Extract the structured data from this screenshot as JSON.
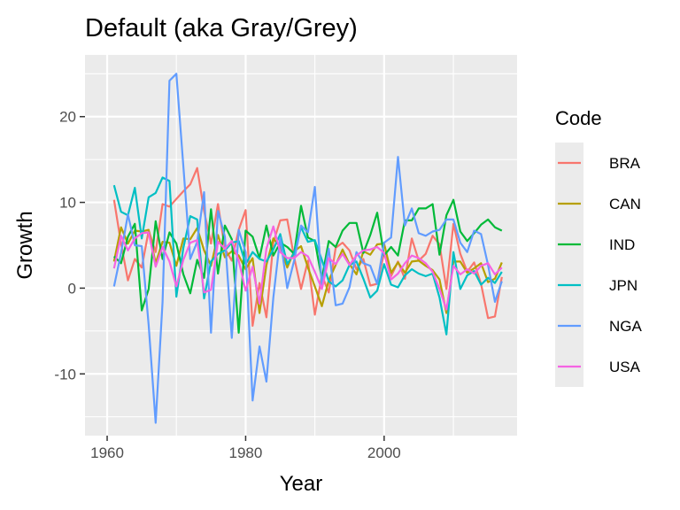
{
  "chart_data": {
    "type": "line",
    "title": "Default (aka Gray/Grey)",
    "xlabel": "Year",
    "ylabel": "Growth",
    "xlim": [
      1956.8,
      2019.2
    ],
    "ylim": [
      -17.2,
      27.2
    ],
    "x_ticks": [
      1960,
      1980,
      2000
    ],
    "y_ticks": [
      -10,
      0,
      10,
      20
    ],
    "grid": true,
    "legend": {
      "title": "Code",
      "placement": "right"
    },
    "x": [
      1961,
      1962,
      1963,
      1964,
      1965,
      1966,
      1967,
      1968,
      1969,
      1970,
      1971,
      1972,
      1973,
      1974,
      1975,
      1976,
      1977,
      1978,
      1979,
      1980,
      1981,
      1982,
      1983,
      1984,
      1985,
      1986,
      1987,
      1988,
      1989,
      1990,
      1991,
      1992,
      1993,
      1994,
      1995,
      1996,
      1997,
      1998,
      1999,
      2000,
      2001,
      2002,
      2003,
      2004,
      2005,
      2006,
      2007,
      2008,
      2009,
      2010,
      2011,
      2012,
      2013,
      2014,
      2015,
      2016,
      2017
    ],
    "series": [
      {
        "name": "BRA",
        "color": "#F8766D",
        "values": [
          10.3,
          5.2,
          0.9,
          3.4,
          2.4,
          6.7,
          4.2,
          9.8,
          9.5,
          10.4,
          11.3,
          12.1,
          14.0,
          9.0,
          5.2,
          9.8,
          4.6,
          3.2,
          6.8,
          9.1,
          -4.4,
          0.6,
          -3.4,
          5.3,
          7.9,
          8.0,
          3.6,
          -0.1,
          3.2,
          -3.1,
          1.5,
          -0.5,
          4.7,
          5.3,
          4.4,
          2.2,
          3.4,
          0.3,
          0.5,
          4.1,
          1.4,
          3.1,
          1.1,
          5.8,
          3.2,
          4.0,
          6.1,
          5.1,
          -0.1,
          7.5,
          4.0,
          1.9,
          3.0,
          0.5,
          -3.5,
          -3.3,
          1.3
        ]
      },
      {
        "name": "CAN",
        "color": "#B79F00",
        "values": [
          3.1,
          7.1,
          5.2,
          6.7,
          6.6,
          6.8,
          2.9,
          5.4,
          5.3,
          2.6,
          5.8,
          5.7,
          7.0,
          4.4,
          2.6,
          6.2,
          3.6,
          4.3,
          3.8,
          2.2,
          3.5,
          -2.9,
          2.7,
          5.8,
          4.8,
          2.4,
          4.3,
          4.9,
          2.4,
          0.2,
          -2.1,
          0.9,
          2.7,
          4.5,
          2.8,
          1.6,
          4.3,
          3.9,
          5.1,
          5.2,
          1.8,
          3.0,
          1.8,
          3.1,
          3.2,
          2.6,
          2.1,
          1.0,
          -2.9,
          3.1,
          3.1,
          1.8,
          2.3,
          2.9,
          0.7,
          1.1,
          3.0
        ]
      },
      {
        "name": "IND",
        "color": "#00BA38",
        "values": [
          3.7,
          2.9,
          6.0,
          7.5,
          -2.6,
          -0.1,
          7.8,
          3.4,
          6.5,
          5.2,
          1.6,
          -0.6,
          3.3,
          1.2,
          9.2,
          1.7,
          7.3,
          5.7,
          -5.2,
          6.7,
          6.0,
          3.5,
          7.3,
          3.8,
          5.3,
          4.8,
          4.0,
          9.6,
          5.9,
          5.5,
          1.1,
          5.5,
          4.8,
          6.7,
          7.6,
          7.6,
          4.1,
          6.2,
          8.8,
          3.8,
          4.8,
          3.8,
          7.9,
          7.9,
          9.3,
          9.3,
          9.8,
          3.9,
          8.5,
          10.3,
          6.6,
          5.5,
          6.4,
          7.4,
          8.0,
          7.1,
          6.7
        ]
      },
      {
        "name": "JPN",
        "color": "#00BFC4",
        "values": [
          12.0,
          8.9,
          8.5,
          11.7,
          5.8,
          10.6,
          11.1,
          12.9,
          12.5,
          -1.0,
          4.7,
          8.4,
          8.0,
          -1.2,
          3.1,
          4.0,
          4.4,
          5.3,
          5.5,
          2.8,
          4.2,
          3.4,
          3.1,
          4.5,
          6.3,
          2.8,
          4.1,
          7.1,
          5.4,
          5.6,
          3.3,
          0.8,
          0.2,
          0.9,
          2.7,
          3.1,
          1.1,
          -1.1,
          -0.3,
          2.8,
          0.4,
          0.1,
          1.5,
          2.2,
          1.7,
          1.4,
          1.7,
          -1.1,
          -5.4,
          4.2,
          -0.1,
          1.5,
          2.0,
          0.4,
          1.2,
          0.6,
          1.9
        ]
      },
      {
        "name": "NGA",
        "color": "#619CFF",
        "values": [
          0.2,
          4.1,
          8.6,
          5.0,
          4.9,
          -4.3,
          -15.7,
          -1.6,
          24.2,
          25.0,
          14.2,
          3.4,
          5.4,
          11.2,
          -5.2,
          9.0,
          6.0,
          -5.8,
          6.8,
          4.2,
          -13.1,
          -6.8,
          -10.9,
          -1.1,
          5.9,
          0.0,
          3.2,
          7.3,
          6.5,
          11.8,
          0.4,
          4.6,
          -2.0,
          -1.8,
          0.1,
          4.2,
          2.9,
          2.6,
          0.5,
          5.3,
          5.9,
          15.3,
          7.3,
          9.3,
          6.4,
          6.1,
          6.6,
          6.8,
          8.0,
          8.0,
          5.3,
          4.2,
          6.7,
          6.3,
          2.7,
          -1.6,
          0.8
        ]
      },
      {
        "name": "USA",
        "color": "#F564E3",
        "values": [
          2.3,
          6.1,
          4.4,
          5.8,
          6.4,
          6.5,
          2.5,
          4.8,
          3.1,
          0.2,
          3.3,
          5.3,
          5.6,
          -0.5,
          -0.2,
          5.4,
          4.6,
          5.5,
          3.2,
          -0.3,
          2.5,
          -1.8,
          4.6,
          7.2,
          4.2,
          3.5,
          3.5,
          4.2,
          3.7,
          1.9,
          -0.1,
          3.5,
          2.8,
          4.0,
          2.7,
          3.8,
          4.4,
          4.5,
          4.8,
          4.1,
          1.0,
          1.7,
          2.9,
          3.8,
          3.5,
          2.9,
          1.9,
          -0.1,
          -2.5,
          2.6,
          1.6,
          2.2,
          1.7,
          2.6,
          2.9,
          1.6,
          2.4
        ]
      }
    ]
  }
}
